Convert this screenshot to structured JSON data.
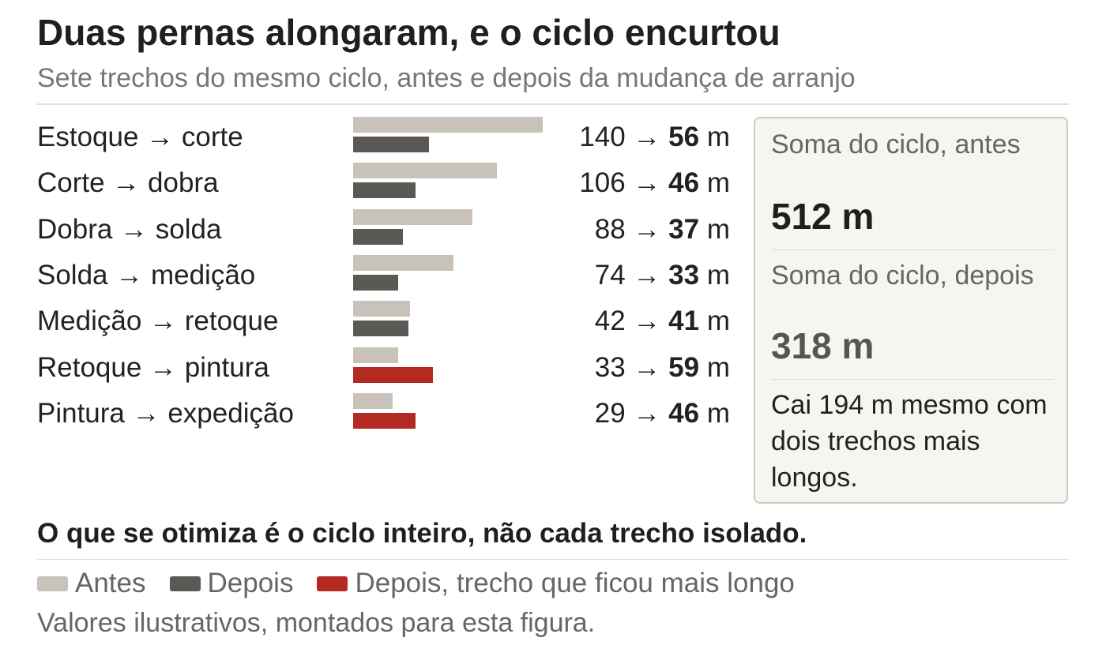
{
  "chart_data": {
    "type": "bar",
    "title": "Duas pernas alongaram, e o ciclo encurtou",
    "subtitle": "Sete trechos do mesmo ciclo, antes e depois da mudança de arranjo",
    "unit": "m",
    "arrow": "→",
    "categories": [
      "Estoque → corte",
      "Corte → dobra",
      "Dobra → solda",
      "Solda → medição",
      "Medição → retoque",
      "Retoque → pintura",
      "Pintura → expedição"
    ],
    "series": [
      {
        "name": "Antes",
        "values": [
          140,
          106,
          88,
          74,
          42,
          33,
          29
        ]
      },
      {
        "name": "Depois",
        "values": [
          56,
          46,
          37,
          33,
          41,
          59,
          46
        ]
      }
    ],
    "longer_after": [
      false,
      false,
      false,
      false,
      false,
      true,
      true
    ],
    "xlim": [
      0,
      140
    ],
    "grid": false,
    "legend": [
      {
        "label": "Antes",
        "color": "#c9c2bb"
      },
      {
        "label": "Depois",
        "color": "#5b5955"
      },
      {
        "label": "Depois, trecho que ficou mais longo",
        "color": "#b32a22"
      }
    ],
    "legend_position": "bottom"
  },
  "summary": {
    "before_label": "Soma do ciclo, antes",
    "before_value": "512 m",
    "after_label": "Soma do ciclo, depois",
    "after_value": "318 m",
    "note": "Cai 194 m mesmo com dois trechos mais longos."
  },
  "conclusion": "O que se otimiza é o ciclo inteiro, não cada trecho isolado.",
  "footnote": "Valores ilustrativos, montados para esta figura.",
  "colors": {
    "before": "#c9c2bb",
    "after": "#5b5955",
    "after_longer": "#b32a22",
    "before_total": "#1f1f1f",
    "after_total": "#555555"
  }
}
